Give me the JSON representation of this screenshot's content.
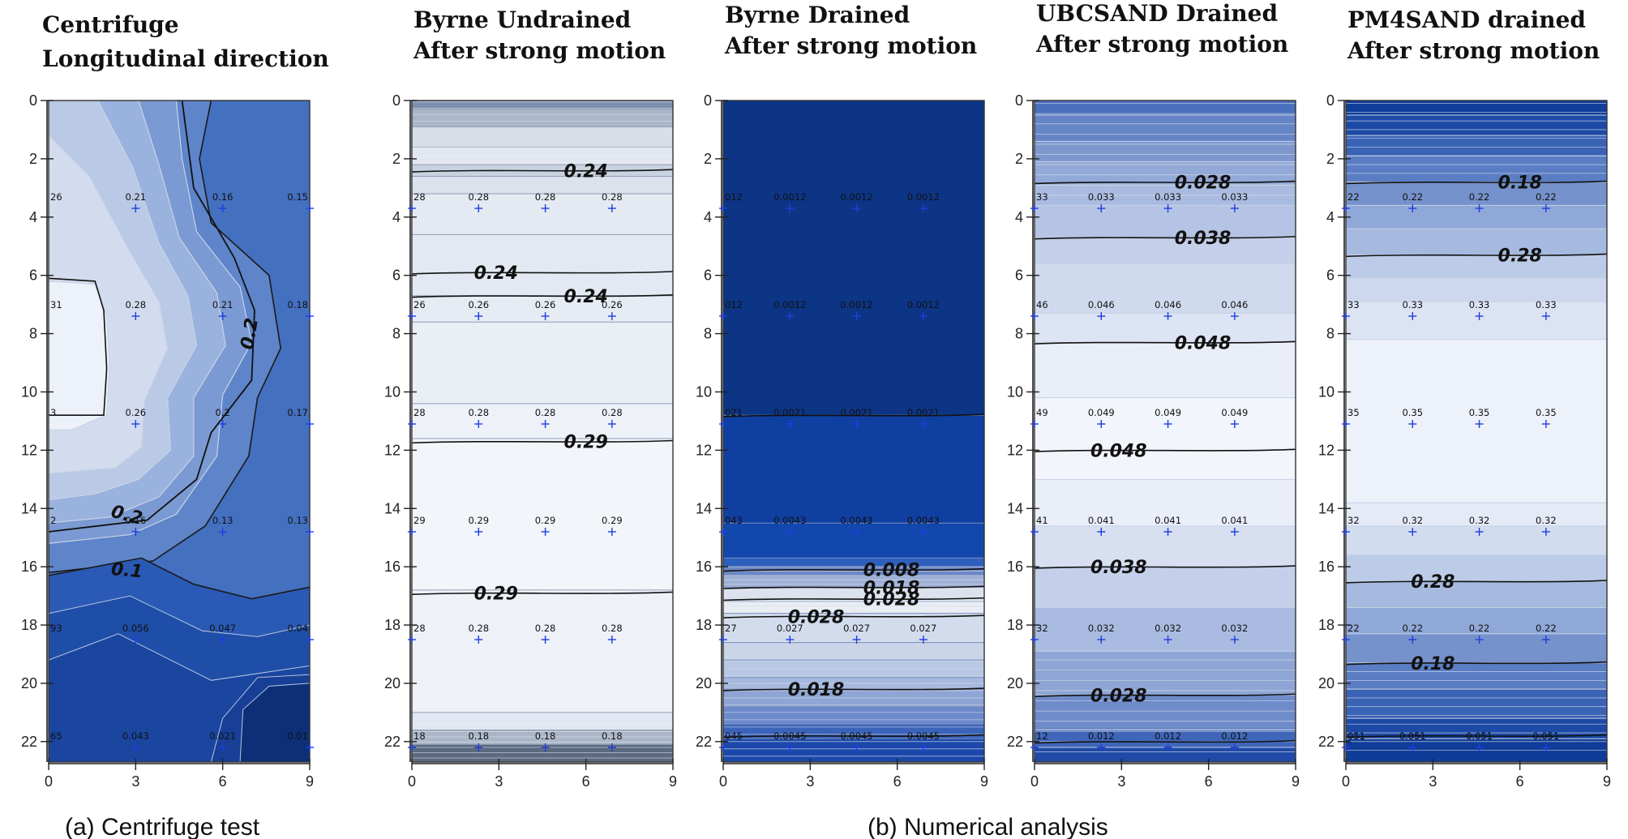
{
  "captions": {
    "a": "(a) Centrifuge test",
    "b": "(b) Numerical analysis"
  },
  "chart_data": [
    {
      "type": "contour",
      "title_lines": [
        "Centrifuge",
        "Longitudinal direction"
      ],
      "xlabel": "",
      "ylabel": "",
      "xlim": [
        0,
        9
      ],
      "ylim": [
        0,
        22.7
      ],
      "x_ticks": [
        0,
        3,
        6,
        9
      ],
      "y_ticks": [
        0,
        2,
        4,
        6,
        8,
        10,
        12,
        14,
        16,
        18,
        20,
        22
      ],
      "point_x": [
        0,
        3,
        6,
        9
      ],
      "point_rows": [
        {
          "y": 3.7,
          "labels": [
            "26",
            "0.21",
            "0.16",
            "0.15"
          ]
        },
        {
          "y": 7.4,
          "labels": [
            "31",
            "0.28",
            "0.21",
            "0.18"
          ]
        },
        {
          "y": 11.1,
          "labels": [
            "3",
            "0.26",
            "0.2",
            "0.17"
          ]
        },
        {
          "y": 14.8,
          "labels": [
            "2",
            "0.16",
            "0.13",
            "0.13"
          ]
        },
        {
          "y": 18.5,
          "labels": [
            "93",
            "0.056",
            "0.047",
            "0.04"
          ]
        },
        {
          "y": 22.2,
          "labels": [
            "65",
            "0.043",
            "0.021",
            "0.01"
          ]
        }
      ],
      "contour_labels": [
        {
          "text": "0.2",
          "x": 6.9,
          "y": 8.0,
          "rotate": -80
        },
        {
          "text": "0.2",
          "x": 2.7,
          "y": 14.2,
          "rotate": 15
        },
        {
          "text": "0.1",
          "x": 2.7,
          "y": 16.1,
          "rotate": 5
        }
      ]
    },
    {
      "type": "contour",
      "title_lines": [
        "Byrne Undrained",
        "After strong motion"
      ],
      "xlabel": "",
      "ylabel": "",
      "xlim": [
        0,
        9
      ],
      "ylim": [
        0,
        22.7
      ],
      "x_ticks": [
        0,
        3,
        6,
        9
      ],
      "y_ticks": [
        0,
        2,
        4,
        6,
        8,
        10,
        12,
        14,
        16,
        18,
        20,
        22
      ],
      "point_x": [
        0,
        2.3,
        4.6,
        6.9
      ],
      "point_rows": [
        {
          "y": 3.7,
          "labels": [
            "28",
            "0.28",
            "0.28",
            "0.28"
          ]
        },
        {
          "y": 7.4,
          "labels": [
            "26",
            "0.26",
            "0.26",
            "0.26"
          ]
        },
        {
          "y": 11.1,
          "labels": [
            "28",
            "0.28",
            "0.28",
            "0.28"
          ]
        },
        {
          "y": 14.8,
          "labels": [
            "29",
            "0.29",
            "0.29",
            "0.29"
          ]
        },
        {
          "y": 18.5,
          "labels": [
            "28",
            "0.28",
            "0.28",
            "0.28"
          ]
        },
        {
          "y": 22.2,
          "labels": [
            "18",
            "0.18",
            "0.18",
            "0.18"
          ]
        }
      ],
      "contour_labels": [
        {
          "text": "0.24",
          "x": 6.0,
          "y": 2.4
        },
        {
          "text": "0.24",
          "x": 2.9,
          "y": 5.9
        },
        {
          "text": "0.24",
          "x": 6.0,
          "y": 6.7
        },
        {
          "text": "0.29",
          "x": 6.0,
          "y": 11.7
        },
        {
          "text": "0.29",
          "x": 2.9,
          "y": 16.9
        }
      ]
    },
    {
      "type": "contour",
      "title_lines": [
        "Byrne Drained",
        "After strong motion"
      ],
      "xlabel": "",
      "ylabel": "",
      "xlim": [
        0,
        9
      ],
      "ylim": [
        0,
        22.7
      ],
      "x_ticks": [
        0,
        3,
        6,
        9
      ],
      "y_ticks": [
        0,
        2,
        4,
        6,
        8,
        10,
        12,
        14,
        16,
        18,
        20,
        22
      ],
      "point_x": [
        0,
        2.3,
        4.6,
        6.9
      ],
      "point_rows": [
        {
          "y": 3.7,
          "labels": [
            "012",
            "0.0012",
            "0.0012",
            "0.0012"
          ]
        },
        {
          "y": 7.4,
          "labels": [
            "012",
            "0.0012",
            "0.0012",
            "0.0012"
          ]
        },
        {
          "y": 11.1,
          "labels": [
            "021",
            "0.0021",
            "0.0021",
            "0.0021"
          ]
        },
        {
          "y": 14.8,
          "labels": [
            "043",
            "0.0043",
            "0.0043",
            "0.0043"
          ]
        },
        {
          "y": 18.5,
          "labels": [
            "27",
            "0.027",
            "0.027",
            "0.027"
          ]
        },
        {
          "y": 22.2,
          "labels": [
            "045",
            "0.0045",
            "0.0045",
            "0.0045"
          ]
        }
      ],
      "contour_labels": [
        {
          "text": "0.008",
          "x": 5.8,
          "y": 16.1
        },
        {
          "text": "0.018",
          "x": 5.8,
          "y": 16.7
        },
        {
          "text": "0.028",
          "x": 5.8,
          "y": 17.1
        },
        {
          "text": "0.028",
          "x": 3.2,
          "y": 17.7
        },
        {
          "text": "0.018",
          "x": 3.2,
          "y": 20.2
        }
      ]
    },
    {
      "type": "contour",
      "title_lines": [
        "UBCSAND Drained",
        "After strong motion"
      ],
      "xlabel": "",
      "ylabel": "",
      "xlim": [
        0,
        9
      ],
      "ylim": [
        0,
        22.7
      ],
      "x_ticks": [
        0,
        3,
        6,
        9
      ],
      "y_ticks": [
        0,
        2,
        4,
        6,
        8,
        10,
        12,
        14,
        16,
        18,
        20,
        22
      ],
      "point_x": [
        0,
        2.3,
        4.6,
        6.9
      ],
      "point_rows": [
        {
          "y": 3.7,
          "labels": [
            "33",
            "0.033",
            "0.033",
            "0.033"
          ]
        },
        {
          "y": 7.4,
          "labels": [
            "46",
            "0.046",
            "0.046",
            "0.046"
          ]
        },
        {
          "y": 11.1,
          "labels": [
            "49",
            "0.049",
            "0.049",
            "0.049"
          ]
        },
        {
          "y": 14.8,
          "labels": [
            "41",
            "0.041",
            "0.041",
            "0.041"
          ]
        },
        {
          "y": 18.5,
          "labels": [
            "32",
            "0.032",
            "0.032",
            "0.032"
          ]
        },
        {
          "y": 22.2,
          "labels": [
            "12",
            "0.012",
            "0.012",
            "0.012"
          ]
        }
      ],
      "contour_labels": [
        {
          "text": "0.028",
          "x": 5.8,
          "y": 2.8
        },
        {
          "text": "0.038",
          "x": 5.8,
          "y": 4.7
        },
        {
          "text": "0.048",
          "x": 5.8,
          "y": 8.3
        },
        {
          "text": "0.048",
          "x": 2.9,
          "y": 12.0
        },
        {
          "text": "0.038",
          "x": 2.9,
          "y": 16.0
        },
        {
          "text": "0.028",
          "x": 2.9,
          "y": 20.4
        }
      ]
    },
    {
      "type": "contour",
      "title_lines": [
        "PM4SAND drained",
        "After strong motion"
      ],
      "xlabel": "",
      "ylabel": "",
      "xlim": [
        0,
        9
      ],
      "ylim": [
        0,
        22.7
      ],
      "x_ticks": [
        0,
        3,
        6,
        9
      ],
      "y_ticks": [
        0,
        2,
        4,
        6,
        8,
        10,
        12,
        14,
        16,
        18,
        20,
        22
      ],
      "point_x": [
        0,
        2.3,
        4.6,
        6.9
      ],
      "point_rows": [
        {
          "y": 3.7,
          "labels": [
            "22",
            "0.22",
            "0.22",
            "0.22"
          ]
        },
        {
          "y": 7.4,
          "labels": [
            "33",
            "0.33",
            "0.33",
            "0.33"
          ]
        },
        {
          "y": 11.1,
          "labels": [
            "35",
            "0.35",
            "0.35",
            "0.35"
          ]
        },
        {
          "y": 14.8,
          "labels": [
            "32",
            "0.32",
            "0.32",
            "0.32"
          ]
        },
        {
          "y": 18.5,
          "labels": [
            "22",
            "0.22",
            "0.22",
            "0.22"
          ]
        },
        {
          "y": 22.2,
          "labels": [
            "051",
            "0.051",
            "0.051",
            "0.051"
          ]
        }
      ],
      "contour_labels": [
        {
          "text": "0.18",
          "x": 6.0,
          "y": 2.8
        },
        {
          "text": "0.28",
          "x": 6.0,
          "y": 5.3
        },
        {
          "text": "0.28",
          "x": 3.0,
          "y": 16.5
        },
        {
          "text": "0.18",
          "x": 3.0,
          "y": 19.3
        }
      ]
    }
  ]
}
